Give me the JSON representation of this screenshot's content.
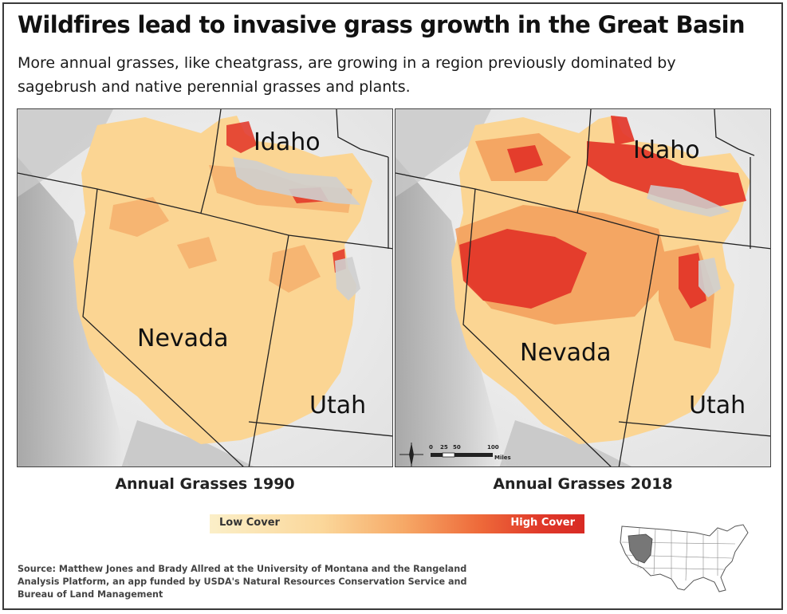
{
  "title": "Wildfires lead to invasive grass growth in the Great Basin",
  "subtitle": "More annual grasses, like cheatgrass, are growing in a region previously dominated by sagebrush and native perennial grasses and plants.",
  "maps": [
    {
      "caption": "Annual Grasses 1990",
      "states": {
        "idaho": "Idaho",
        "nevada": "Nevada",
        "utah": "Utah"
      }
    },
    {
      "caption": "Annual Grasses 2018",
      "states": {
        "idaho": "Idaho",
        "nevada": "Nevada",
        "utah": "Utah"
      },
      "scale_bar": {
        "ticks": [
          "0",
          "25",
          "50",
          "100"
        ],
        "unit": "Miles"
      }
    }
  ],
  "legend": {
    "low_label": "Low Cover",
    "high_label": "High Cover",
    "low_color": "#fbefc8",
    "high_color": "#d82a24"
  },
  "colors": {
    "background_relief": "#d6d6d6",
    "basin_low": "#fbd593",
    "basin_mid": "#f39a58",
    "basin_high": "#e23226",
    "state_line": "#222222"
  },
  "source": "Source: Matthew Jones and Brady Allred at the University of Montana and the Rangeland Analysis Platform, an app funded by USDA's Natural Resources Conservation Service and Bureau of Land Management",
  "locator_map": {
    "highlight_region": "Great Basin"
  }
}
